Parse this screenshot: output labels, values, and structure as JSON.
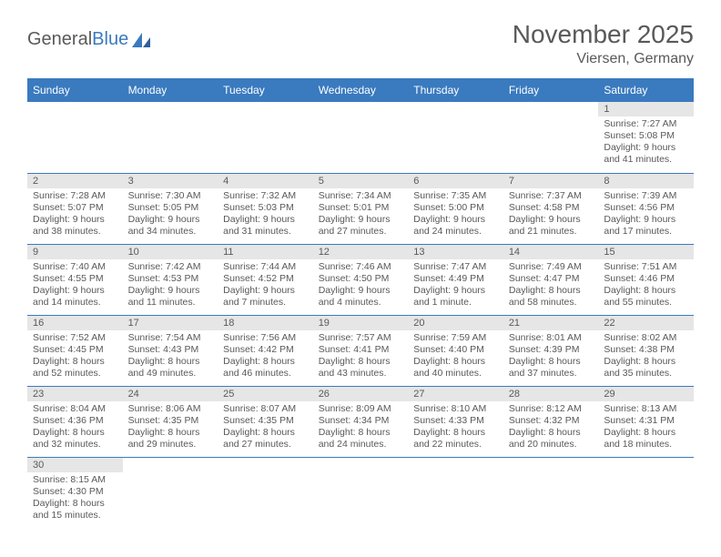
{
  "logo": {
    "text_a": "General",
    "text_b": "Blue"
  },
  "title": "November 2025",
  "location": "Viersen, Germany",
  "colors": {
    "header_bg": "#3a7abf",
    "header_text": "#ffffff",
    "daynum_bg": "#e6e6e6",
    "text": "#595959",
    "rule": "#3a7abf",
    "background": "#ffffff"
  },
  "weekdays": [
    "Sunday",
    "Monday",
    "Tuesday",
    "Wednesday",
    "Thursday",
    "Friday",
    "Saturday"
  ],
  "days": [
    {
      "n": 1,
      "sr": "7:27 AM",
      "ss": "5:08 PM",
      "dl": "9 hours and 41 minutes."
    },
    {
      "n": 2,
      "sr": "7:28 AM",
      "ss": "5:07 PM",
      "dl": "9 hours and 38 minutes."
    },
    {
      "n": 3,
      "sr": "7:30 AM",
      "ss": "5:05 PM",
      "dl": "9 hours and 34 minutes."
    },
    {
      "n": 4,
      "sr": "7:32 AM",
      "ss": "5:03 PM",
      "dl": "9 hours and 31 minutes."
    },
    {
      "n": 5,
      "sr": "7:34 AM",
      "ss": "5:01 PM",
      "dl": "9 hours and 27 minutes."
    },
    {
      "n": 6,
      "sr": "7:35 AM",
      "ss": "5:00 PM",
      "dl": "9 hours and 24 minutes."
    },
    {
      "n": 7,
      "sr": "7:37 AM",
      "ss": "4:58 PM",
      "dl": "9 hours and 21 minutes."
    },
    {
      "n": 8,
      "sr": "7:39 AM",
      "ss": "4:56 PM",
      "dl": "9 hours and 17 minutes."
    },
    {
      "n": 9,
      "sr": "7:40 AM",
      "ss": "4:55 PM",
      "dl": "9 hours and 14 minutes."
    },
    {
      "n": 10,
      "sr": "7:42 AM",
      "ss": "4:53 PM",
      "dl": "9 hours and 11 minutes."
    },
    {
      "n": 11,
      "sr": "7:44 AM",
      "ss": "4:52 PM",
      "dl": "9 hours and 7 minutes."
    },
    {
      "n": 12,
      "sr": "7:46 AM",
      "ss": "4:50 PM",
      "dl": "9 hours and 4 minutes."
    },
    {
      "n": 13,
      "sr": "7:47 AM",
      "ss": "4:49 PM",
      "dl": "9 hours and 1 minute."
    },
    {
      "n": 14,
      "sr": "7:49 AM",
      "ss": "4:47 PM",
      "dl": "8 hours and 58 minutes."
    },
    {
      "n": 15,
      "sr": "7:51 AM",
      "ss": "4:46 PM",
      "dl": "8 hours and 55 minutes."
    },
    {
      "n": 16,
      "sr": "7:52 AM",
      "ss": "4:45 PM",
      "dl": "8 hours and 52 minutes."
    },
    {
      "n": 17,
      "sr": "7:54 AM",
      "ss": "4:43 PM",
      "dl": "8 hours and 49 minutes."
    },
    {
      "n": 18,
      "sr": "7:56 AM",
      "ss": "4:42 PM",
      "dl": "8 hours and 46 minutes."
    },
    {
      "n": 19,
      "sr": "7:57 AM",
      "ss": "4:41 PM",
      "dl": "8 hours and 43 minutes."
    },
    {
      "n": 20,
      "sr": "7:59 AM",
      "ss": "4:40 PM",
      "dl": "8 hours and 40 minutes."
    },
    {
      "n": 21,
      "sr": "8:01 AM",
      "ss": "4:39 PM",
      "dl": "8 hours and 37 minutes."
    },
    {
      "n": 22,
      "sr": "8:02 AM",
      "ss": "4:38 PM",
      "dl": "8 hours and 35 minutes."
    },
    {
      "n": 23,
      "sr": "8:04 AM",
      "ss": "4:36 PM",
      "dl": "8 hours and 32 minutes."
    },
    {
      "n": 24,
      "sr": "8:06 AM",
      "ss": "4:35 PM",
      "dl": "8 hours and 29 minutes."
    },
    {
      "n": 25,
      "sr": "8:07 AM",
      "ss": "4:35 PM",
      "dl": "8 hours and 27 minutes."
    },
    {
      "n": 26,
      "sr": "8:09 AM",
      "ss": "4:34 PM",
      "dl": "8 hours and 24 minutes."
    },
    {
      "n": 27,
      "sr": "8:10 AM",
      "ss": "4:33 PM",
      "dl": "8 hours and 22 minutes."
    },
    {
      "n": 28,
      "sr": "8:12 AM",
      "ss": "4:32 PM",
      "dl": "8 hours and 20 minutes."
    },
    {
      "n": 29,
      "sr": "8:13 AM",
      "ss": "4:31 PM",
      "dl": "8 hours and 18 minutes."
    },
    {
      "n": 30,
      "sr": "8:15 AM",
      "ss": "4:30 PM",
      "dl": "8 hours and 15 minutes."
    }
  ],
  "first_weekday_index": 6,
  "labels": {
    "sunrise": "Sunrise:",
    "sunset": "Sunset:",
    "daylight": "Daylight:"
  }
}
